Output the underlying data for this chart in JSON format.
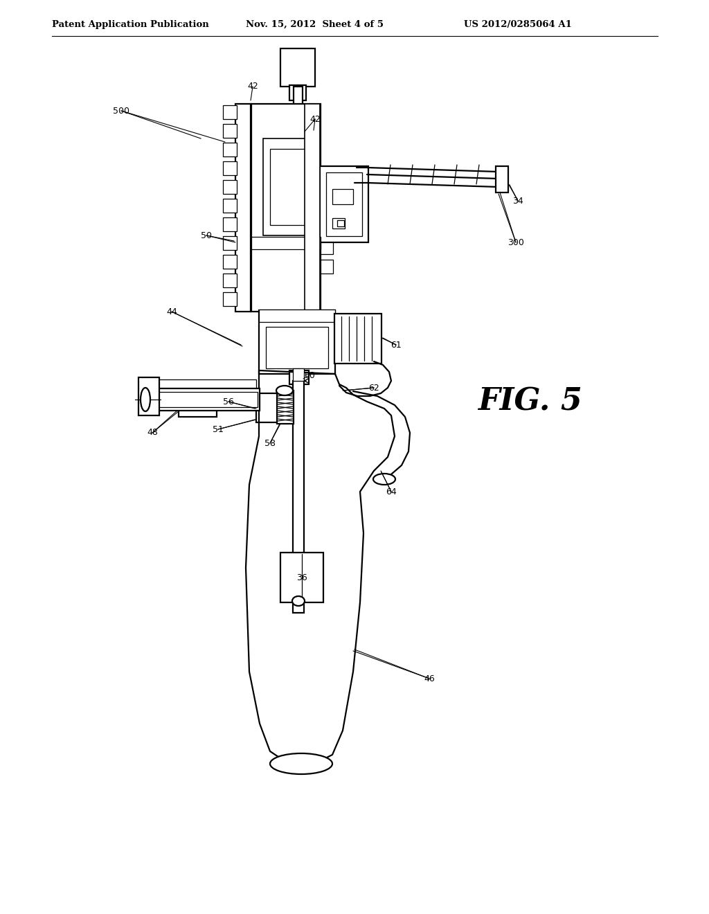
{
  "background_color": "#ffffff",
  "header_left": "Patent Application Publication",
  "header_mid": "Nov. 15, 2012  Sheet 4 of 5",
  "header_right": "US 2012/0285064 A1",
  "fig_label": "FIG. 5",
  "line_color": "#000000"
}
